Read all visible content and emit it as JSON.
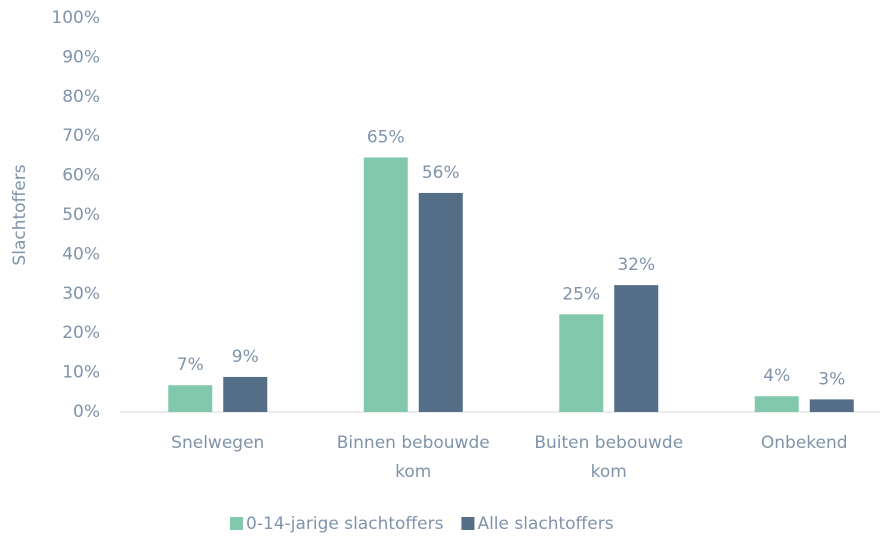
{
  "chart_data": {
    "type": "bar",
    "y_label": "Slachtoffers",
    "categories": [
      "Snelwegen",
      "Binnen bebouwde kom",
      "Buiten bebouwde kom",
      "Onbekend"
    ],
    "series": [
      {
        "name": "0-14-jarige slachtoffers",
        "color": "#82c8ac",
        "values": [
          6.8,
          64.6,
          24.8,
          4.0
        ],
        "value_labels": [
          "7%",
          "65%",
          "25%",
          "4%"
        ]
      },
      {
        "name": "Alle slachtoffers",
        "color": "#546e87",
        "values": [
          8.9,
          55.6,
          32.2,
          3.2
        ],
        "value_labels": [
          "9%",
          "56%",
          "32%",
          "3%"
        ]
      }
    ],
    "ylim": [
      0,
      100
    ],
    "yticks": [
      {
        "value": 0,
        "label": "0%"
      },
      {
        "value": 10,
        "label": "10%"
      },
      {
        "value": 20,
        "label": "20%"
      },
      {
        "value": 30,
        "label": "30%"
      },
      {
        "value": 40,
        "label": "40%"
      },
      {
        "value": 50,
        "label": "50%"
      },
      {
        "value": 60,
        "label": "60%"
      },
      {
        "value": 70,
        "label": "70%"
      },
      {
        "value": 80,
        "label": "80%"
      },
      {
        "value": 90,
        "label": "90%"
      },
      {
        "value": 100,
        "label": "100%"
      }
    ],
    "grid": false,
    "legend": "bottom"
  }
}
